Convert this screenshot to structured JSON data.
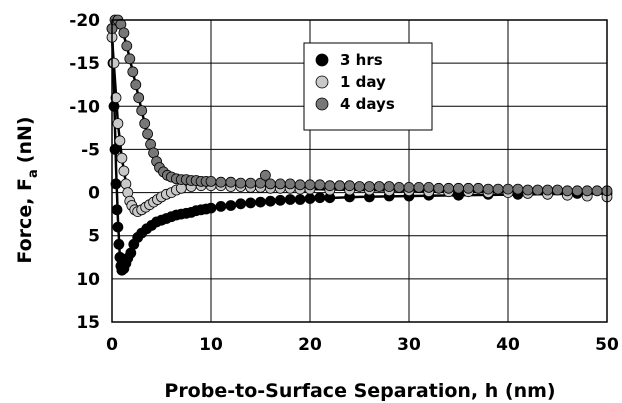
{
  "chart_data": {
    "type": "scatter",
    "xlabel": "Probe-to-Surface Separation, h (nm)",
    "ylabel": "Force, F",
    "ylabel_subscript": "a",
    "ylabel_unit": "(nN)",
    "xlim": [
      0,
      50
    ],
    "ylim": [
      15,
      -20
    ],
    "y_inverted": true,
    "grid": true,
    "x_ticks": [
      0,
      10,
      20,
      30,
      40,
      50
    ],
    "x_tick_labels": [
      "0",
      "10",
      "20",
      "30",
      "40",
      "50"
    ],
    "y_ticks": [
      -20,
      -15,
      -10,
      -5,
      0,
      5,
      10,
      15
    ],
    "y_tick_labels": [
      "-20",
      "-15",
      "-10",
      "-5",
      "0",
      "5",
      "10",
      "15"
    ],
    "legend_position": "top-center",
    "series": [
      {
        "name": "3 hrs",
        "color": "#000000",
        "fit": [
          [
            0,
            -19
          ],
          [
            0.2,
            -12
          ],
          [
            0.4,
            -3
          ],
          [
            0.6,
            3
          ],
          [
            0.8,
            7.5
          ],
          [
            1.0,
            9
          ],
          [
            1.3,
            8.5
          ],
          [
            1.8,
            7.2
          ],
          [
            2.5,
            5.5
          ],
          [
            3.5,
            4.3
          ],
          [
            5,
            3.3
          ],
          [
            7,
            2.5
          ],
          [
            10,
            1.8
          ],
          [
            14,
            1.2
          ],
          [
            18,
            0.8
          ],
          [
            25,
            0.5
          ],
          [
            35,
            0.3
          ],
          [
            50,
            0.1
          ]
        ],
        "points": [
          [
            0,
            -19
          ],
          [
            0.1,
            -15
          ],
          [
            0.2,
            -10
          ],
          [
            0.3,
            -5
          ],
          [
            0.4,
            -1
          ],
          [
            0.5,
            2
          ],
          [
            0.6,
            4
          ],
          [
            0.7,
            6
          ],
          [
            0.8,
            7.5
          ],
          [
            0.9,
            8.5
          ],
          [
            1.0,
            9
          ],
          [
            1.2,
            8.8
          ],
          [
            1.4,
            8.2
          ],
          [
            1.6,
            7.6
          ],
          [
            1.9,
            7
          ],
          [
            2.2,
            6
          ],
          [
            2.6,
            5.2
          ],
          [
            3,
            4.7
          ],
          [
            3.5,
            4.2
          ],
          [
            4,
            3.8
          ],
          [
            4.5,
            3.4
          ],
          [
            5,
            3.2
          ],
          [
            5.5,
            3
          ],
          [
            6,
            2.8
          ],
          [
            6.5,
            2.6
          ],
          [
            7,
            2.5
          ],
          [
            7.5,
            2.4
          ],
          [
            8,
            2.3
          ],
          [
            8.5,
            2.1
          ],
          [
            9,
            2
          ],
          [
            9.5,
            1.9
          ],
          [
            10,
            1.8
          ],
          [
            11,
            1.6
          ],
          [
            12,
            1.5
          ],
          [
            13,
            1.3
          ],
          [
            14,
            1.2
          ],
          [
            15,
            1.1
          ],
          [
            16,
            1.0
          ],
          [
            17,
            0.9
          ],
          [
            18,
            0.8
          ],
          [
            19,
            0.8
          ],
          [
            20,
            0.7
          ],
          [
            21,
            0.6
          ],
          [
            22,
            0.6
          ],
          [
            24,
            0.5
          ],
          [
            26,
            0.5
          ],
          [
            28,
            0.4
          ],
          [
            30,
            0.4
          ],
          [
            32,
            0.3
          ],
          [
            35,
            0.3
          ],
          [
            38,
            0.2
          ],
          [
            41,
            0.2
          ],
          [
            44,
            0.1
          ],
          [
            47,
            0.1
          ],
          [
            50,
            0.1
          ]
        ]
      },
      {
        "name": "1 day",
        "color": "#c8c8c8",
        "fit": [
          [
            0,
            -18
          ],
          [
            0.3,
            -13
          ],
          [
            0.6,
            -8
          ],
          [
            1,
            -4
          ],
          [
            1.5,
            -0.5
          ],
          [
            2,
            1.5
          ],
          [
            2.5,
            2
          ],
          [
            3,
            2
          ],
          [
            3.5,
            1.6
          ],
          [
            4,
            1.2
          ],
          [
            5,
            0.5
          ],
          [
            6,
            0
          ],
          [
            7,
            -0.5
          ],
          [
            8,
            -0.8
          ],
          [
            10,
            -0.8
          ],
          [
            15,
            -0.6
          ],
          [
            20,
            -0.4
          ],
          [
            30,
            -0.2
          ],
          [
            40,
            -0.1
          ],
          [
            50,
            0
          ]
        ],
        "points": [
          [
            0,
            -18
          ],
          [
            0.2,
            -15
          ],
          [
            0.4,
            -11
          ],
          [
            0.6,
            -8
          ],
          [
            0.8,
            -6
          ],
          [
            1,
            -4
          ],
          [
            1.2,
            -2.5
          ],
          [
            1.4,
            -1
          ],
          [
            1.6,
            0
          ],
          [
            1.8,
            1
          ],
          [
            2,
            1.5
          ],
          [
            2.3,
            2
          ],
          [
            2.6,
            2.2
          ],
          [
            3,
            2
          ],
          [
            3.4,
            1.7
          ],
          [
            3.8,
            1.4
          ],
          [
            4.2,
            1.1
          ],
          [
            4.6,
            0.8
          ],
          [
            5,
            0.5
          ],
          [
            5.5,
            0.2
          ],
          [
            6,
            0
          ],
          [
            6.5,
            -0.3
          ],
          [
            7,
            -0.5
          ],
          [
            8,
            -0.7
          ],
          [
            9,
            -0.8
          ],
          [
            10,
            -0.8
          ],
          [
            11,
            -0.8
          ],
          [
            12,
            -0.7
          ],
          [
            13,
            -0.7
          ],
          [
            14,
            -0.6
          ],
          [
            15,
            -0.6
          ],
          [
            16,
            -0.5
          ],
          [
            17,
            -0.5
          ],
          [
            18,
            -0.5
          ],
          [
            19,
            -0.4
          ],
          [
            20,
            -0.4
          ],
          [
            22,
            -0.3
          ],
          [
            24,
            -0.3
          ],
          [
            26,
            -0.3
          ],
          [
            28,
            -0.2
          ],
          [
            30,
            -0.2
          ],
          [
            32,
            -0.1
          ],
          [
            34,
            -0.1
          ],
          [
            36,
            -0.1
          ],
          [
            38,
            0
          ],
          [
            40,
            0
          ],
          [
            42,
            0.1
          ],
          [
            44,
            0.2
          ],
          [
            46,
            0.3
          ],
          [
            48,
            0.4
          ],
          [
            50,
            0.5
          ]
        ]
      },
      {
        "name": "4 days",
        "color": "#777777",
        "fit": [
          [
            0,
            -19
          ],
          [
            0.5,
            -20
          ],
          [
            1,
            -19
          ],
          [
            1.5,
            -17
          ],
          [
            2,
            -14.5
          ],
          [
            2.5,
            -12
          ],
          [
            3,
            -9.5
          ],
          [
            3.5,
            -7
          ],
          [
            4,
            -5
          ],
          [
            4.5,
            -3.5
          ],
          [
            5,
            -2.5
          ],
          [
            6,
            -1.8
          ],
          [
            7,
            -1.5
          ],
          [
            8,
            -1.4
          ],
          [
            10,
            -1.3
          ],
          [
            15,
            -1.1
          ],
          [
            20,
            -0.9
          ],
          [
            30,
            -0.6
          ],
          [
            40,
            -0.4
          ],
          [
            50,
            -0.2
          ]
        ],
        "points": [
          [
            0,
            -19
          ],
          [
            0.3,
            -20
          ],
          [
            0.6,
            -20
          ],
          [
            0.9,
            -19.5
          ],
          [
            1.2,
            -18.5
          ],
          [
            1.5,
            -17
          ],
          [
            1.8,
            -15.5
          ],
          [
            2.1,
            -14
          ],
          [
            2.4,
            -12.5
          ],
          [
            2.7,
            -11
          ],
          [
            3,
            -9.5
          ],
          [
            3.3,
            -8
          ],
          [
            3.6,
            -6.8
          ],
          [
            3.9,
            -5.6
          ],
          [
            4.2,
            -4.6
          ],
          [
            4.5,
            -3.6
          ],
          [
            4.8,
            -2.9
          ],
          [
            5.2,
            -2.4
          ],
          [
            5.6,
            -2
          ],
          [
            6,
            -1.8
          ],
          [
            6.5,
            -1.6
          ],
          [
            7,
            -1.5
          ],
          [
            7.5,
            -1.5
          ],
          [
            8,
            -1.4
          ],
          [
            8.5,
            -1.4
          ],
          [
            9,
            -1.3
          ],
          [
            9.5,
            -1.3
          ],
          [
            10,
            -1.3
          ],
          [
            11,
            -1.2
          ],
          [
            12,
            -1.2
          ],
          [
            13,
            -1.1
          ],
          [
            14,
            -1.1
          ],
          [
            15,
            -1.1
          ],
          [
            15.5,
            -2
          ],
          [
            16,
            -1
          ],
          [
            17,
            -1
          ],
          [
            18,
            -1
          ],
          [
            19,
            -0.9
          ],
          [
            20,
            -0.9
          ],
          [
            21,
            -0.9
          ],
          [
            22,
            -0.8
          ],
          [
            23,
            -0.8
          ],
          [
            24,
            -0.8
          ],
          [
            25,
            -0.7
          ],
          [
            26,
            -0.7
          ],
          [
            27,
            -0.7
          ],
          [
            28,
            -0.7
          ],
          [
            29,
            -0.6
          ],
          [
            30,
            -0.6
          ],
          [
            31,
            -0.6
          ],
          [
            32,
            -0.6
          ],
          [
            33,
            -0.5
          ],
          [
            34,
            -0.5
          ],
          [
            35,
            -0.5
          ],
          [
            36,
            -0.5
          ],
          [
            37,
            -0.5
          ],
          [
            38,
            -0.4
          ],
          [
            39,
            -0.4
          ],
          [
            40,
            -0.4
          ],
          [
            41,
            -0.4
          ],
          [
            42,
            -0.3
          ],
          [
            43,
            -0.3
          ],
          [
            44,
            -0.3
          ],
          [
            45,
            -0.3
          ],
          [
            46,
            -0.2
          ],
          [
            47,
            -0.2
          ],
          [
            48,
            -0.2
          ],
          [
            49,
            -0.2
          ],
          [
            50,
            -0.2
          ]
        ]
      }
    ]
  }
}
